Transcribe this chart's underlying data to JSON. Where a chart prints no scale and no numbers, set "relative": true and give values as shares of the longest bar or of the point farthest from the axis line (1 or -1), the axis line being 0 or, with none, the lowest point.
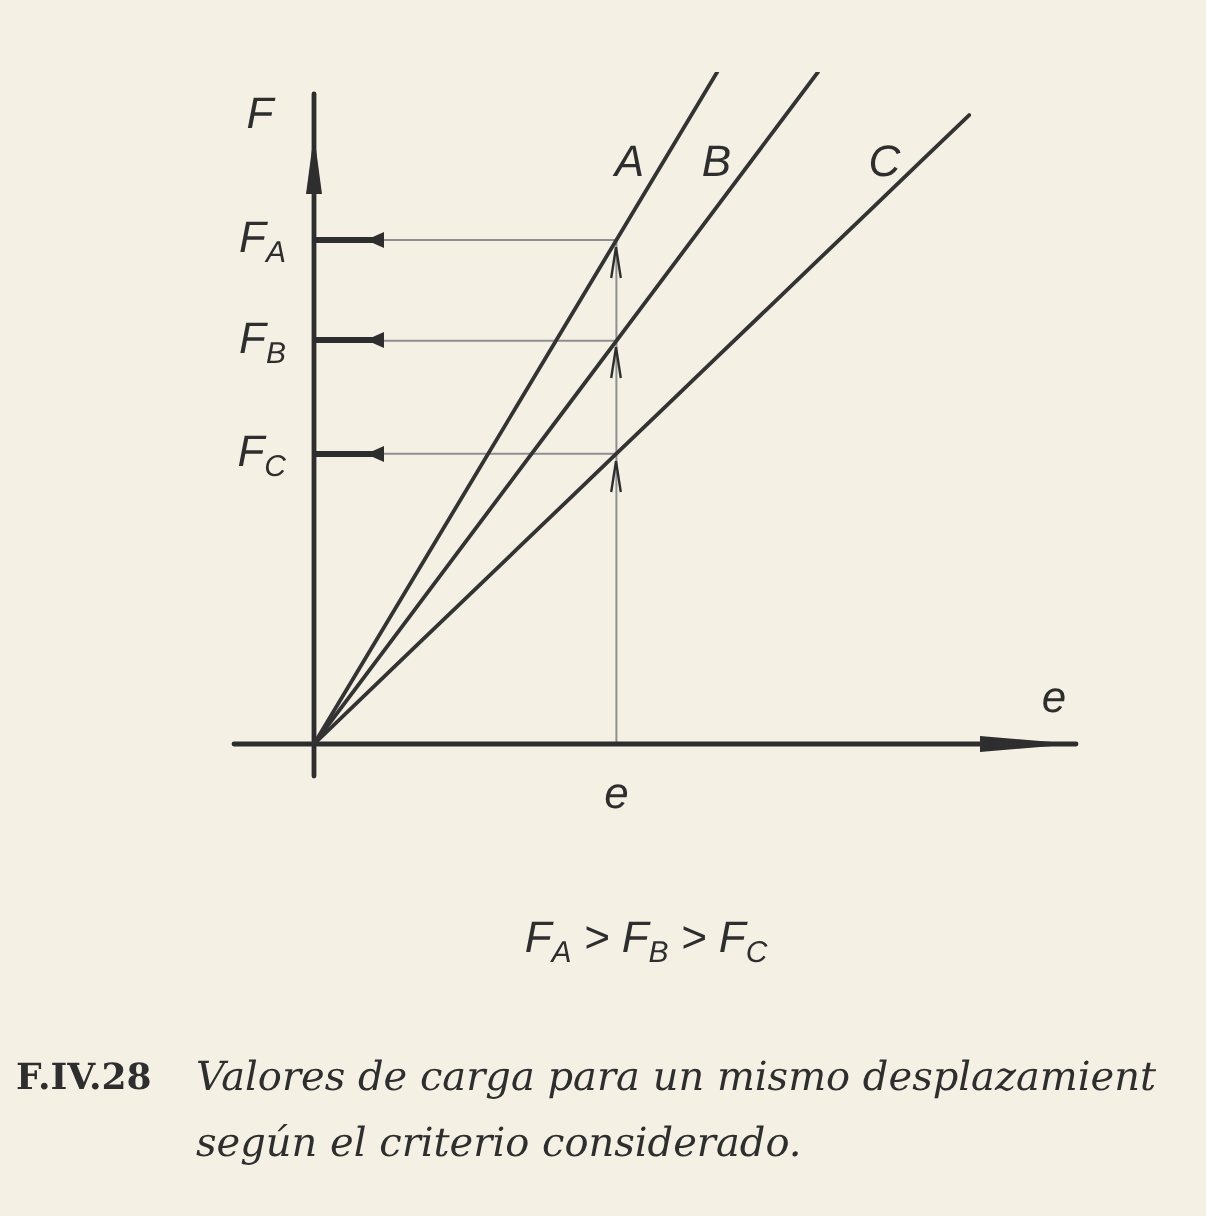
{
  "chart_data": {
    "type": "line",
    "relative": true,
    "marker": "none",
    "categories": [
      null,
      null,
      null,
      null,
      null,
      null,
      null,
      null,
      null,
      null,
      null,
      null,
      null,
      null,
      null,
      null
    ],
    "series": [
      {
        "name": "A",
        "color": "#333333",
        "values": [
          0,
          0.125,
          0.25,
          0.375,
          0.5,
          0.625,
          0.75,
          0.875,
          1,
          null,
          null,
          null,
          null,
          null,
          null,
          null
        ]
      },
      {
        "name": "B",
        "color": "#333333",
        "values": [
          0,
          0.1,
          0.2,
          0.3,
          0.4,
          0.5,
          0.6,
          0.7,
          0.8,
          0.9,
          1,
          null,
          null,
          null,
          null,
          null
        ]
      },
      {
        "name": "C",
        "color": "#333333",
        "values": [
          0,
          0.072,
          0.144,
          0.216,
          0.288,
          0.36,
          0.432,
          0.504,
          0.576,
          0.648,
          0.72,
          0.792,
          0.864,
          0.936,
          null,
          null
        ]
      }
    ],
    "xlabel": "e",
    "ylabel": "F",
    "ref_lines": [
      {
        "axis": "y",
        "value": 0.75,
        "label": "F$_{A}$",
        "color": "#8f8f8f"
      },
      {
        "axis": "y",
        "value": 0.6,
        "label": "F$_{B}$",
        "color": "#8f8f8f"
      },
      {
        "axis": "y",
        "value": 0.432,
        "label": "F$_{C}$",
        "color": "#8f8f8f"
      }
    ],
    "annotations": [
      "e",
      "F$_{A}$ > F$_{B}$ > F$_{C}$",
      "F.IV.28",
      "Valores de carga para un mismo desplazamient según el criterio considerado."
    ]
  }
}
